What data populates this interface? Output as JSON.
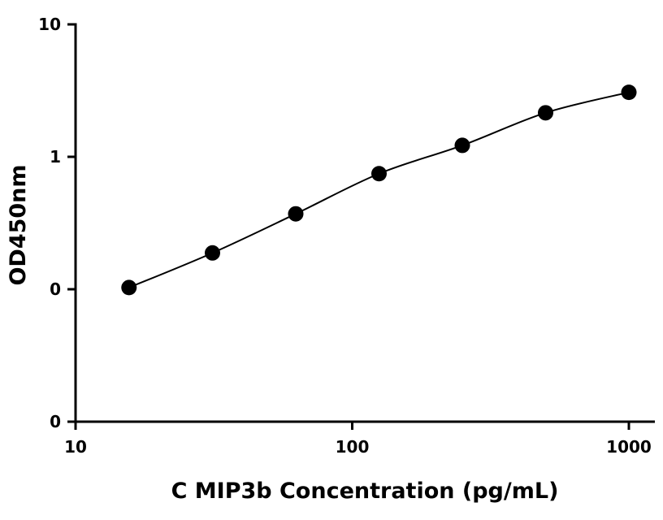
{
  "chart_data": {
    "type": "scatter",
    "xlabel": "C MIP3b Concentration (pg/mL)",
    "ylabel": "OD450nm",
    "x_scale": "log",
    "y_scale": "log",
    "xlim": [
      10,
      1150
    ],
    "ylim": [
      0.01,
      10
    ],
    "x_ticks": [
      {
        "value": 10,
        "label": "10"
      },
      {
        "value": 100,
        "label": "100"
      },
      {
        "value": 1000,
        "label": "1000"
      }
    ],
    "y_ticks": [
      {
        "value": 0.01,
        "label": "0"
      },
      {
        "value": 0.1,
        "label": "0"
      },
      {
        "value": 1,
        "label": "1"
      },
      {
        "value": 10,
        "label": "10"
      }
    ],
    "grid": false,
    "legend": "none",
    "series": [
      {
        "x": [
          15.6,
          31.25,
          62.5,
          125,
          250,
          500,
          1000
        ],
        "y": [
          0.103,
          0.188,
          0.371,
          0.746,
          1.22,
          2.15,
          3.07
        ],
        "marker_color": "#000000",
        "fit_curve": true
      }
    ]
  }
}
